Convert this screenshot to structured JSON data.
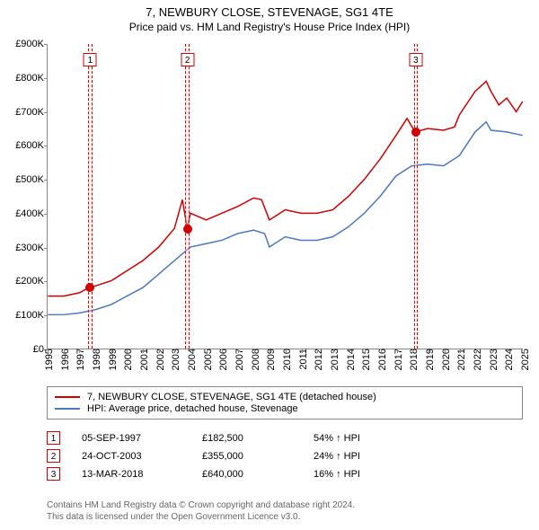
{
  "title": "7, NEWBURY CLOSE, STEVENAGE, SG1 4TE",
  "subtitle": "Price paid vs. HM Land Registry's House Price Index (HPI)",
  "chart": {
    "type": "line",
    "background_color": "#ffffff",
    "grid_color": "#e0e0e0",
    "axis_color": "#888888",
    "x_min": 1995,
    "x_max": 2025,
    "y_min": 0,
    "y_max": 900000,
    "y_tick_step": 100000,
    "y_tick_prefix": "£",
    "y_tick_suffix": "K",
    "x_ticks": [
      1995,
      1996,
      1997,
      1998,
      1999,
      2000,
      2001,
      2002,
      2003,
      2004,
      2005,
      2006,
      2007,
      2008,
      2009,
      2010,
      2011,
      2012,
      2013,
      2014,
      2015,
      2016,
      2017,
      2018,
      2019,
      2020,
      2021,
      2022,
      2023,
      2024,
      2025
    ],
    "x_label_fontsize": 11,
    "y_label_fontsize": 11,
    "line_width": 1.5,
    "series": [
      {
        "name": "property",
        "label": "7, NEWBURY CLOSE, STEVENAGE, SG1 4TE (detached house)",
        "color": "#d40000",
        "data": [
          [
            1995,
            155000
          ],
          [
            1996,
            155000
          ],
          [
            1997,
            165000
          ],
          [
            1997.68,
            182500
          ],
          [
            1998,
            185000
          ],
          [
            1999,
            200000
          ],
          [
            2000,
            230000
          ],
          [
            2001,
            260000
          ],
          [
            2002,
            300000
          ],
          [
            2003,
            355000
          ],
          [
            2003.5,
            440000
          ],
          [
            2003.81,
            355000
          ],
          [
            2004,
            400000
          ],
          [
            2005,
            380000
          ],
          [
            2006,
            400000
          ],
          [
            2007,
            420000
          ],
          [
            2008,
            445000
          ],
          [
            2008.5,
            440000
          ],
          [
            2009,
            380000
          ],
          [
            2009.5,
            395000
          ],
          [
            2010,
            410000
          ],
          [
            2011,
            400000
          ],
          [
            2012,
            400000
          ],
          [
            2013,
            410000
          ],
          [
            2014,
            450000
          ],
          [
            2015,
            500000
          ],
          [
            2016,
            560000
          ],
          [
            2017,
            630000
          ],
          [
            2017.7,
            680000
          ],
          [
            2018.2,
            640000
          ],
          [
            2019,
            650000
          ],
          [
            2020,
            645000
          ],
          [
            2020.7,
            655000
          ],
          [
            2021,
            690000
          ],
          [
            2022,
            760000
          ],
          [
            2022.7,
            790000
          ],
          [
            2023,
            760000
          ],
          [
            2023.5,
            720000
          ],
          [
            2024,
            740000
          ],
          [
            2024.6,
            700000
          ],
          [
            2025,
            730000
          ]
        ]
      },
      {
        "name": "hpi",
        "label": "HPI: Average price, detached house, Stevenage",
        "color": "#4a78c4",
        "data": [
          [
            1995,
            100000
          ],
          [
            1996,
            100000
          ],
          [
            1997,
            105000
          ],
          [
            1998,
            115000
          ],
          [
            1999,
            130000
          ],
          [
            2000,
            155000
          ],
          [
            2001,
            180000
          ],
          [
            2002,
            220000
          ],
          [
            2003,
            260000
          ],
          [
            2004,
            300000
          ],
          [
            2005,
            310000
          ],
          [
            2006,
            320000
          ],
          [
            2007,
            340000
          ],
          [
            2008,
            350000
          ],
          [
            2008.7,
            340000
          ],
          [
            2009,
            300000
          ],
          [
            2010,
            330000
          ],
          [
            2011,
            320000
          ],
          [
            2012,
            320000
          ],
          [
            2013,
            330000
          ],
          [
            2014,
            360000
          ],
          [
            2015,
            400000
          ],
          [
            2016,
            450000
          ],
          [
            2017,
            510000
          ],
          [
            2018,
            540000
          ],
          [
            2019,
            545000
          ],
          [
            2020,
            540000
          ],
          [
            2021,
            570000
          ],
          [
            2022,
            640000
          ],
          [
            2022.7,
            670000
          ],
          [
            2023,
            645000
          ],
          [
            2024,
            640000
          ],
          [
            2025,
            630000
          ]
        ]
      }
    ],
    "markers": [
      {
        "n": 1,
        "x": 1997.68,
        "y": 182500,
        "band_width_years": 0.25,
        "box_top_offset": 10
      },
      {
        "n": 2,
        "x": 2003.81,
        "y": 355000,
        "band_width_years": 0.25,
        "box_top_offset": 10
      },
      {
        "n": 3,
        "x": 2018.2,
        "y": 640000,
        "band_width_years": 0.25,
        "box_top_offset": 10
      }
    ],
    "dot_color": "#d40000",
    "dot_radius": 5,
    "marker_box_border": "#d40000",
    "marker_band_color": "rgba(255,220,220,0.35)",
    "marker_band_border": "#d40000"
  },
  "legend": {
    "border_color": "#888888",
    "fontsize": 11
  },
  "sales": [
    {
      "n": "1",
      "date": "05-SEP-1997",
      "price": "£182,500",
      "delta": "54% ↑ HPI"
    },
    {
      "n": "2",
      "date": "24-OCT-2003",
      "price": "£355,000",
      "delta": "24% ↑ HPI"
    },
    {
      "n": "3",
      "date": "13-MAR-2018",
      "price": "£640,000",
      "delta": "16% ↑ HPI"
    }
  ],
  "footer": {
    "line1": "Contains HM Land Registry data © Crown copyright and database right 2024.",
    "line2": "This data is licensed under the Open Government Licence v3.0.",
    "color": "#666666",
    "fontsize": 10
  }
}
